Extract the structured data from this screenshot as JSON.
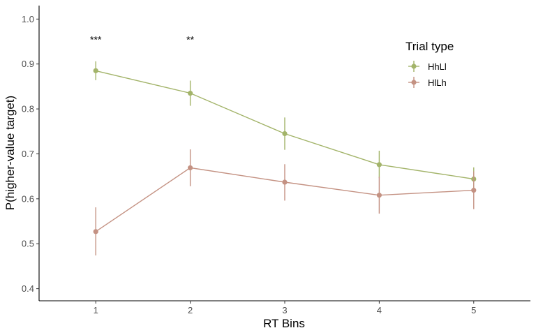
{
  "chart_data": {
    "type": "line",
    "title": "",
    "xlabel": "RT Bins",
    "ylabel": "P(higher-value target)",
    "x": [
      1,
      2,
      3,
      4,
      5
    ],
    "x_tick_labels": [
      "1",
      "2",
      "3",
      "4",
      "5"
    ],
    "xlim": [
      0.4,
      5.6
    ],
    "ylim": [
      0.373,
      1.03
    ],
    "y_ticks": [
      0.4,
      0.5,
      0.6,
      0.7,
      0.8,
      0.9,
      1.0
    ],
    "y_tick_labels": [
      "0.4",
      "0.5",
      "0.6",
      "0.7",
      "0.8",
      "0.9",
      "1.0"
    ],
    "grid": false,
    "legend": {
      "title": "Trial type",
      "placement": "top-right"
    },
    "series": [
      {
        "name": "HhLl",
        "color": "#a3b46a",
        "values": [
          0.885,
          0.835,
          0.745,
          0.676,
          0.644
        ],
        "err_low": [
          0.864,
          0.807,
          0.709,
          0.646,
          0.623
        ],
        "err_high": [
          0.906,
          0.863,
          0.781,
          0.707,
          0.67
        ]
      },
      {
        "name": "HlLh",
        "color": "#c49283",
        "values": [
          0.527,
          0.669,
          0.637,
          0.608,
          0.619
        ],
        "err_low": [
          0.474,
          0.628,
          0.596,
          0.567,
          0.577
        ],
        "err_high": [
          0.581,
          0.71,
          0.677,
          0.649,
          0.661
        ]
      }
    ],
    "annotations": [
      {
        "x": 1,
        "y": 0.955,
        "text": "***"
      },
      {
        "x": 2,
        "y": 0.955,
        "text": "**"
      }
    ]
  }
}
